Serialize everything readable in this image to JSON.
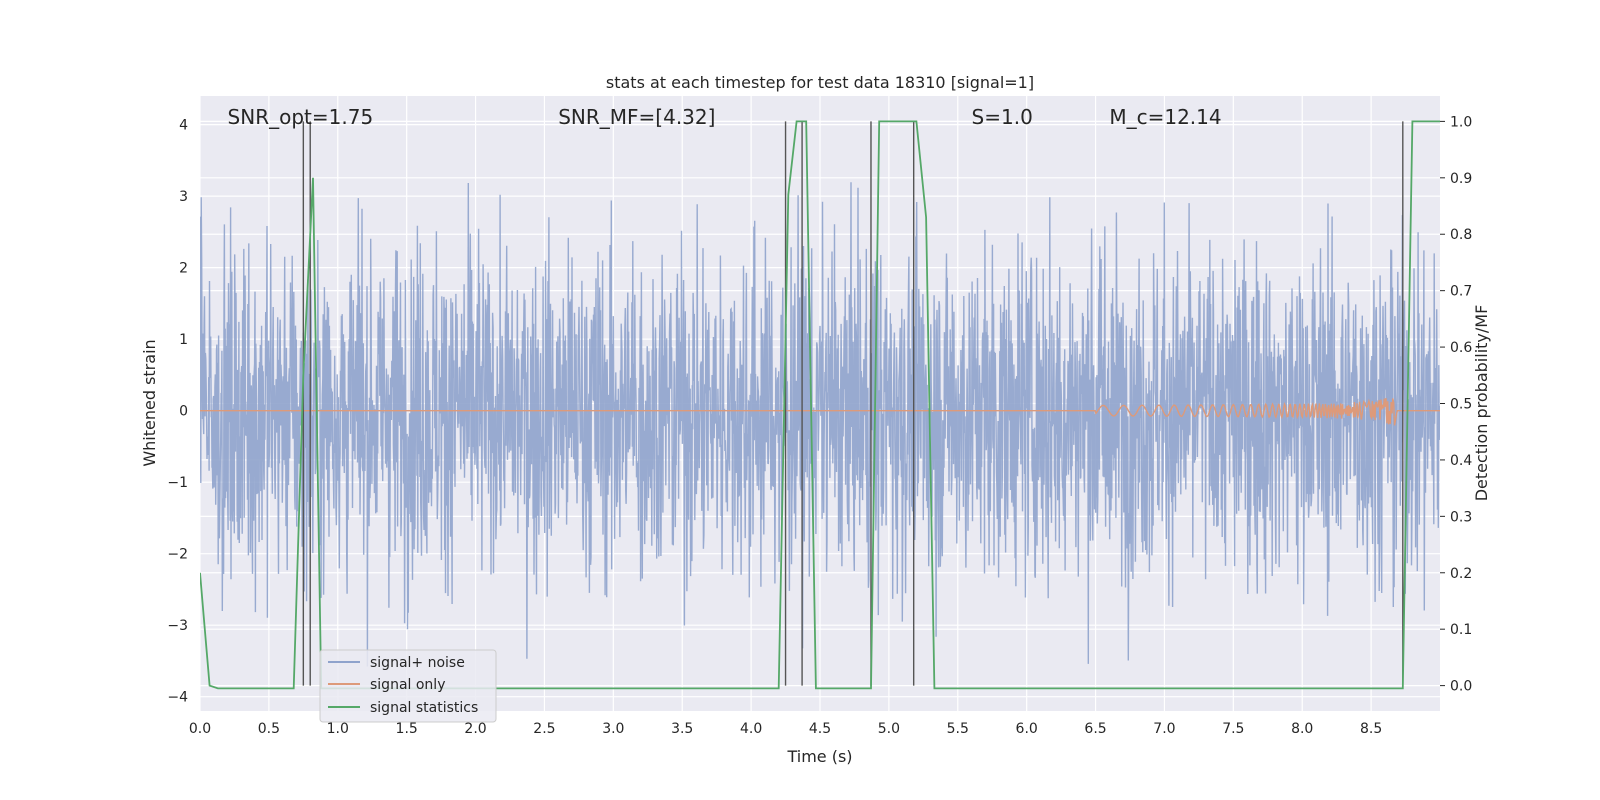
{
  "chart_data": {
    "type": "line",
    "title": "stats at each timestep for test data 18310 [signal=1]",
    "xlabel": "Time (s)",
    "ylabel": "Whitened strain",
    "ylabel_right": "Detection probability/MF",
    "xlim": [
      0.0,
      9.0
    ],
    "ylim": [
      -4.2,
      4.4
    ],
    "ylim_right": [
      -0.045,
      1.045
    ],
    "x_ticks": [
      0.0,
      0.5,
      1.0,
      1.5,
      2.0,
      2.5,
      3.0,
      3.5,
      4.0,
      4.5,
      5.0,
      5.5,
      6.0,
      6.5,
      7.0,
      7.5,
      8.0,
      8.5
    ],
    "x_tick_labels": [
      "0.0",
      "0.5",
      "1.0",
      "1.5",
      "2.0",
      "2.5",
      "3.0",
      "3.5",
      "4.0",
      "4.5",
      "5.0",
      "5.5",
      "6.0",
      "6.5",
      "7.0",
      "7.5",
      "8.0",
      "8.5"
    ],
    "y_ticks": [
      -4,
      -3,
      -2,
      -1,
      0,
      1,
      2,
      3,
      4
    ],
    "y_tick_labels": [
      "−4",
      "−3",
      "−2",
      "−1",
      "0",
      "1",
      "2",
      "3",
      "4"
    ],
    "y_ticks_right": [
      0.0,
      0.1,
      0.2,
      0.3,
      0.4,
      0.5,
      0.6,
      0.7,
      0.8,
      0.9,
      1.0
    ],
    "y_tick_labels_right": [
      "0.0",
      "0.1",
      "0.2",
      "0.3",
      "0.4",
      "0.5",
      "0.6",
      "0.7",
      "0.8",
      "0.9",
      "1.0"
    ],
    "grid": true,
    "legend_position": "bottom-left",
    "annotations": [
      {
        "id": "snr-opt",
        "text": "SNR_opt=1.75",
        "x": 0.2
      },
      {
        "id": "snr-mf",
        "text": "SNR_MF=[4.32]",
        "x": 2.6
      },
      {
        "id": "s-value",
        "text": "S=1.0",
        "x": 5.6
      },
      {
        "id": "mc-value",
        "text": "M_c=12.14",
        "x": 6.6
      }
    ],
    "series": [
      {
        "name": "signal+ noise",
        "color": "#8fa3cc",
        "style": "noise",
        "amplitude_std": 1.15,
        "typical_max": 3.2,
        "typical_min": -3.6
      },
      {
        "name": "signal only",
        "color": "#dd9a7a",
        "style": "chirp",
        "t_start": 6.5,
        "t_merge": 8.67,
        "peak": 0.35
      },
      {
        "name": "signal statistics",
        "color": "#55a868",
        "x": [
          0.0,
          0.07,
          0.13,
          0.2,
          0.68,
          0.75,
          0.82,
          0.88,
          4.2,
          4.27,
          4.33,
          4.4,
          4.47,
          4.53,
          4.87,
          4.93,
          5.0,
          5.07,
          5.13,
          5.2,
          5.27,
          5.33,
          8.73,
          8.8,
          8.87,
          9.0
        ],
        "values": [
          0.2,
          0.0,
          -0.005,
          -0.005,
          -0.005,
          0.55,
          0.9,
          -0.005,
          -0.005,
          0.87,
          1.0,
          1.0,
          -0.005,
          -0.005,
          -0.005,
          1.0,
          1.0,
          1.0,
          1.0,
          1.0,
          0.83,
          -0.005,
          -0.005,
          1.0,
          1.0,
          1.0
        ]
      },
      {
        "name": "",
        "color": "#555555",
        "style": "mf-spikes",
        "x": [
          0.75,
          0.8,
          4.25,
          4.37,
          4.87,
          5.18,
          8.73
        ],
        "top": 1.0
      }
    ]
  }
}
